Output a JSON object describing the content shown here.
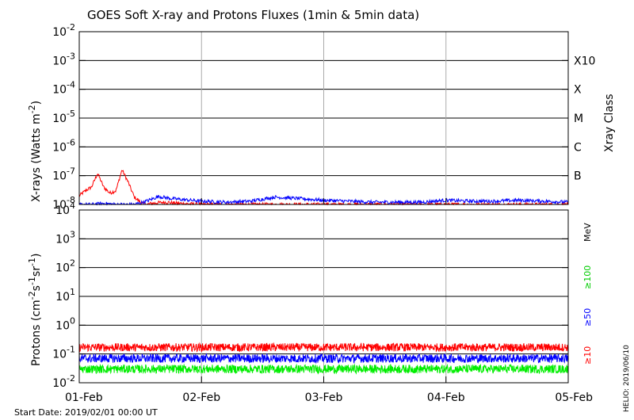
{
  "chart_data": [
    {
      "type": "line",
      "title": "GOES Soft X-ray and Protons Fluxes   (1min & 5min data)",
      "ylabel_base": "X-rays (Watts m",
      "ylabel_sup": "-2",
      "ylabel_end": ")",
      "yscale": "log",
      "ylim": [
        1e-08,
        0.01
      ],
      "ytick_exponents": [
        "-2",
        "-3",
        "-4",
        "-5",
        "-6",
        "-7",
        "-8"
      ],
      "y2label": "Xray Class",
      "xray_classes": [
        "X10",
        "X",
        "M",
        "C",
        "B"
      ],
      "series": [
        {
          "name": "",
          "color": "#ff0000",
          "x": [
            0.0,
            0.05,
            0.1,
            0.15,
            0.2,
            0.25,
            0.3,
            0.35,
            0.4,
            0.45,
            0.5,
            0.55,
            0.6,
            0.7,
            0.8,
            1.0,
            1.2,
            1.5,
            1.8,
            2.0,
            2.3,
            2.6,
            2.9,
            3.0,
            3.3,
            3.6,
            3.9,
            4.0
          ],
          "y": [
            2e-08,
            3e-08,
            4e-08,
            1.2e-07,
            4e-08,
            2.5e-08,
            3e-08,
            1.6e-07,
            6e-08,
            1.8e-08,
            1.2e-08,
            1e-08,
            1.1e-08,
            1.2e-08,
            1.1e-08,
            1e-08,
            1e-08,
            1e-08,
            1e-08,
            1e-08,
            1e-08,
            1e-08,
            1e-08,
            1e-08,
            1e-08,
            1e-08,
            1e-08,
            1e-08
          ]
        },
        {
          "name": "",
          "color": "#0000ff",
          "x": [
            0.0,
            0.1,
            0.2,
            0.3,
            0.45,
            0.55,
            0.65,
            0.75,
            1.0,
            1.2,
            1.4,
            1.6,
            1.8,
            2.0,
            2.2,
            2.4,
            2.6,
            2.8,
            3.0,
            3.2,
            3.4,
            3.6,
            3.8,
            4.0
          ],
          "y": [
            1e-08,
            1e-08,
            1.1e-08,
            1e-08,
            1e-08,
            1.3e-08,
            1.9e-08,
            1.6e-08,
            1.3e-08,
            1.2e-08,
            1.3e-08,
            1.8e-08,
            1.6e-08,
            1.4e-08,
            1.3e-08,
            1.2e-08,
            1.2e-08,
            1.2e-08,
            1.4e-08,
            1.3e-08,
            1.3e-08,
            1.4e-08,
            1.3e-08,
            1.2e-08
          ]
        }
      ]
    },
    {
      "type": "line",
      "ylabel_base": "Protons (cm",
      "ylabel_sup1": "-2",
      "ylabel_mid1": "s",
      "ylabel_sup2": "-1",
      "ylabel_mid2": "sr",
      "ylabel_sup3": "-1",
      "ylabel_end": ")",
      "yscale": "log",
      "ylim": [
        0.01,
        10000
      ],
      "ytick_exponents": [
        "4",
        "3",
        "2",
        "1",
        "0",
        "-1",
        "-2"
      ],
      "unit_label": "MeV",
      "threshold": 10,
      "series": [
        {
          "name": "≥10",
          "color": "#ff0000",
          "level": 0.17
        },
        {
          "name": "≥50",
          "color": "#0000ff",
          "level": 0.07
        },
        {
          "name": "≥100",
          "color": "#00ee00",
          "level": 0.03
        }
      ]
    }
  ],
  "xaxis": {
    "categories": [
      "01-Feb",
      "02-Feb",
      "03-Feb",
      "04-Feb",
      "05-Feb"
    ],
    "start_label": "Start Date: 2019/02/01 00:00 UT"
  },
  "credit": "HELIO: 2019/06/10"
}
